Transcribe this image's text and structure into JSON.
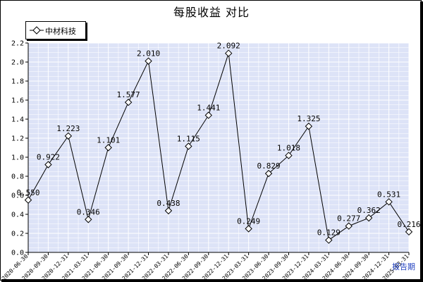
{
  "chart_data": {
    "type": "line",
    "title": "每股收益  对比",
    "xlabel": "",
    "ylabel": "",
    "ylim": [
      0,
      2.2
    ],
    "yticks": [
      "0.0",
      "0.2",
      "0.4",
      "0.6",
      "0.8",
      "1.0",
      "1.2",
      "1.4",
      "1.6",
      "1.8",
      "2.0",
      "2.2"
    ],
    "grid": true,
    "legend_position": "top-left",
    "period_label": "报告期",
    "categories": [
      "2020-06-30",
      "2020-09-30",
      "2020-12-31",
      "2021-03-31",
      "2021-06-30",
      "2021-09-30",
      "2021-12-31",
      "2022-03-31",
      "2022-06-30",
      "2022-09-30",
      "2022-12-31",
      "2023-03-31",
      "2023-06-30",
      "2023-09-30",
      "2023-12-31",
      "2024-03-31",
      "2024-06-30",
      "2024-09-30",
      "2024-12-31",
      "2025-03-31"
    ],
    "series": [
      {
        "name": "中材科技",
        "values": [
          0.55,
          0.922,
          1.223,
          0.346,
          1.101,
          1.577,
          2.01,
          0.438,
          1.115,
          1.441,
          2.092,
          0.249,
          0.829,
          1.018,
          1.325,
          0.129,
          0.277,
          0.362,
          0.531,
          0.216
        ],
        "labels": [
          "0.550",
          "0.922",
          "1.223",
          "0.346",
          "1.101",
          "1.577",
          "2.010",
          "0.438",
          "1.115",
          "1.441",
          "2.092",
          "0.249",
          "0.829",
          "1.018",
          "1.325",
          "0.129",
          "0.277",
          "0.362",
          "0.531",
          "0.216"
        ]
      }
    ],
    "colors": {
      "plot_bg": "#dde3f7",
      "grid": "#ffffff",
      "line": "#000000",
      "marker_fill": "#ffffff",
      "axis": "#000000",
      "period_label": "#1f3fbf"
    }
  }
}
